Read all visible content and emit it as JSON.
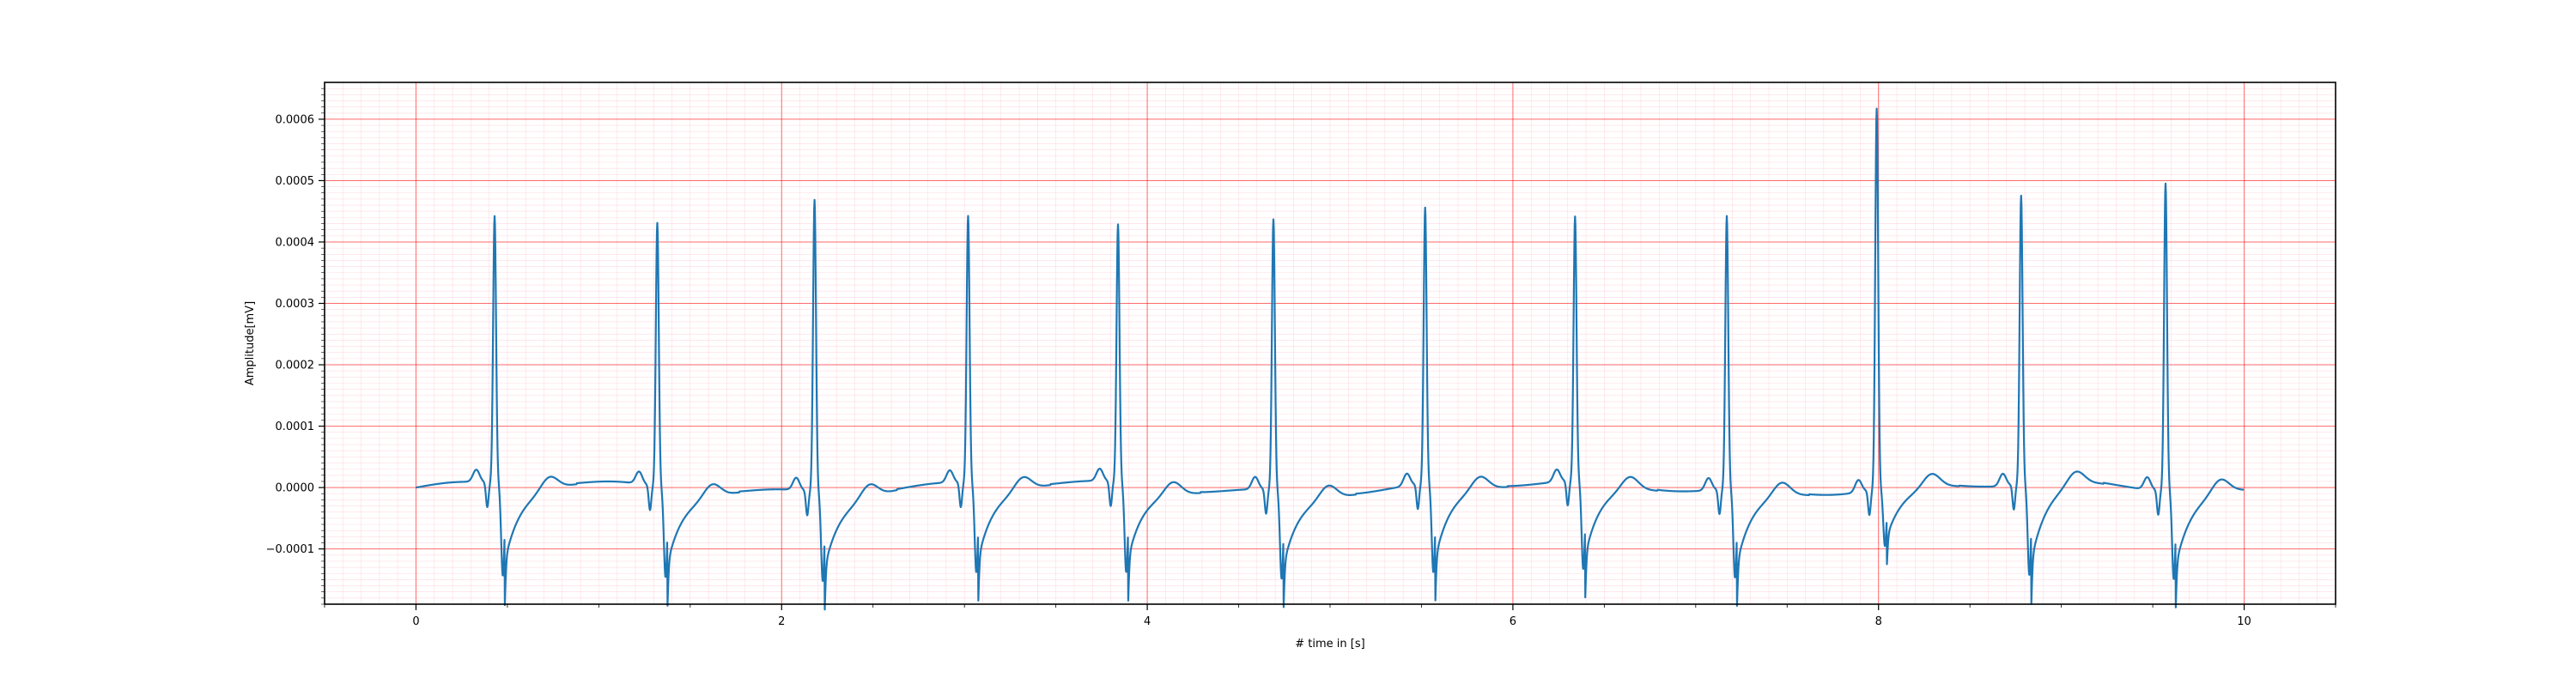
{
  "chart_data": {
    "type": "line",
    "title": "",
    "xlabel": "# time in [s]",
    "ylabel": "Amplitude[mV]",
    "xlim": [
      -0.5,
      10.5
    ],
    "ylim": [
      -0.00019,
      0.00066
    ],
    "x_ticks": [
      0,
      2,
      4,
      6,
      8,
      10
    ],
    "x_tick_labels": [
      "0",
      "2",
      "4",
      "6",
      "8",
      "10"
    ],
    "y_ticks": [
      -0.0001,
      0.0,
      0.0001,
      0.0002,
      0.0003,
      0.0004,
      0.0005,
      0.0006
    ],
    "y_tick_labels": [
      "−0.0001",
      "0.0000",
      "0.0001",
      "0.0002",
      "0.0003",
      "0.0004",
      "0.0005",
      "0.0006"
    ],
    "grid": true,
    "grid_major_color": "#ff0000",
    "grid_minor_color": "#ffc0cb",
    "line_color": "#1f77b4",
    "series": [
      {
        "beats": [
          {
            "t": 0.43,
            "r": 0.000435,
            "s": -0.00015
          },
          {
            "t": 1.32,
            "r": 0.00043,
            "s": -0.000145
          },
          {
            "t": 2.18,
            "r": 0.000475,
            "s": -0.000145
          },
          {
            "t": 3.02,
            "r": 0.000435,
            "s": -0.000145
          },
          {
            "t": 3.84,
            "r": 0.00042,
            "s": -0.000145
          },
          {
            "t": 4.69,
            "r": 0.00044,
            "s": -0.000145
          },
          {
            "t": 5.52,
            "r": 0.00045,
            "s": -0.000145
          },
          {
            "t": 6.34,
            "r": 0.00043,
            "s": -0.000145
          },
          {
            "t": 7.17,
            "r": 0.000445,
            "s": -0.000145
          },
          {
            "t": 7.99,
            "r": 0.00062,
            "s": -9.5e-05
          },
          {
            "t": 8.78,
            "r": 0.00047,
            "s": -0.00015
          },
          {
            "t": 9.57,
            "r": 0.0005,
            "s": -0.000145
          }
        ],
        "baseline": [
          {
            "x": 0.0,
            "y": 0.0
          },
          {
            "x": 10.0,
            "y": 0.0
          }
        ]
      }
    ]
  }
}
